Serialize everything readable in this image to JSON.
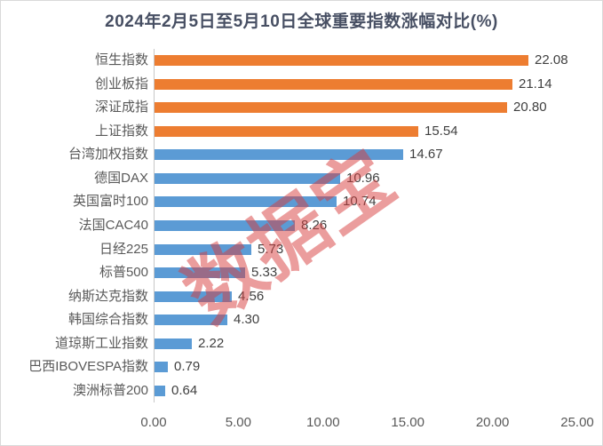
{
  "title": "2024年2月5日至5月10日全球重要指数涨幅对比(%)",
  "watermark": "数据宝",
  "colors": {
    "orange": "#ED7D31",
    "blue": "#5B9BD5",
    "title_text": "#474F63",
    "category_text": "#595959",
    "value_text": "#404040",
    "tick_text": "#595959",
    "axis_line": "#C8C8C8",
    "chart_border": "#D9D9D9",
    "watermark_color": "rgba(216,60,60,0.5)"
  },
  "chart_data": {
    "type": "bar",
    "orientation": "horizontal",
    "title": "2024年2月5日至5月10日全球重要指数涨幅对比(%)",
    "categories": [
      "恒生指数",
      "创业板指",
      "深证成指",
      "上证指数",
      "台湾加权指数",
      "德国DAX",
      "英国富时100",
      "法国CAC40",
      "日经225",
      "标普500",
      "纳斯达克指数",
      "韩国综合指数",
      "道琼斯工业指数",
      "巴西IBOVESPA指数",
      "澳洲标普200"
    ],
    "values": [
      22.08,
      21.14,
      20.8,
      15.54,
      14.67,
      10.96,
      10.74,
      8.26,
      5.73,
      5.33,
      4.56,
      4.3,
      2.22,
      0.79,
      0.64
    ],
    "value_labels": [
      "22.08",
      "21.14",
      "20.80",
      "15.54",
      "14.67",
      "10.96",
      "10.74",
      "8.26",
      "5.73",
      "5.33",
      "4.56",
      "4.30",
      "2.22",
      "0.79",
      "0.64"
    ],
    "series_colors": [
      "#ED7D31",
      "#ED7D31",
      "#ED7D31",
      "#ED7D31",
      "#5B9BD5",
      "#5B9BD5",
      "#5B9BD5",
      "#5B9BD5",
      "#5B9BD5",
      "#5B9BD5",
      "#5B9BD5",
      "#5B9BD5",
      "#5B9BD5",
      "#5B9BD5",
      "#5B9BD5"
    ],
    "xlabel": "",
    "ylabel": "",
    "xlim": [
      0,
      25
    ],
    "xticks": [
      0,
      5,
      10,
      15,
      20,
      25
    ],
    "xtick_labels": [
      "0.00",
      "5.00",
      "10.00",
      "15.00",
      "20.00",
      "25.00"
    ],
    "grid": false,
    "legend": false
  }
}
